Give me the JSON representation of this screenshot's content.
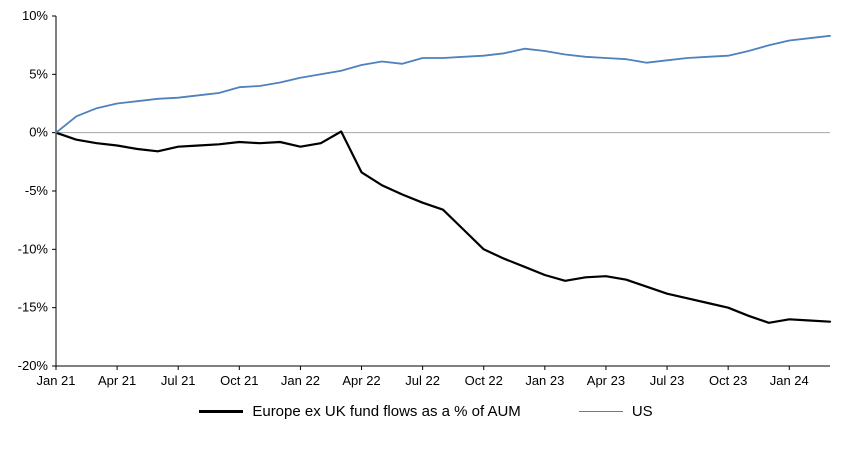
{
  "chart_data": {
    "type": "line",
    "title": "",
    "xlabel": "",
    "ylabel": "",
    "ylim": [
      -20,
      10
    ],
    "y_ticks": [
      {
        "value": 10,
        "label": "10%"
      },
      {
        "value": 5,
        "label": "5%"
      },
      {
        "value": 0,
        "label": "0%"
      },
      {
        "value": -5,
        "label": "-5%"
      },
      {
        "value": -10,
        "label": "-10%"
      },
      {
        "value": -15,
        "label": "-15%"
      },
      {
        "value": -20,
        "label": "-20%"
      }
    ],
    "x_unit": "month",
    "x_count": 39,
    "x_ticks": [
      {
        "index": 0,
        "label": "Jan 21"
      },
      {
        "index": 3,
        "label": "Apr 21"
      },
      {
        "index": 6,
        "label": "Jul 21"
      },
      {
        "index": 9,
        "label": "Oct 21"
      },
      {
        "index": 12,
        "label": "Jan 22"
      },
      {
        "index": 15,
        "label": "Apr 22"
      },
      {
        "index": 18,
        "label": "Jul 22"
      },
      {
        "index": 21,
        "label": "Oct 22"
      },
      {
        "index": 24,
        "label": "Jan 23"
      },
      {
        "index": 27,
        "label": "Apr 23"
      },
      {
        "index": 30,
        "label": "Jul 23"
      },
      {
        "index": 33,
        "label": "Oct 23"
      },
      {
        "index": 36,
        "label": "Jan 24"
      }
    ],
    "grid": false,
    "zero_line_color": "#a6a6a6",
    "axis_color": "#000000",
    "legend_position": "bottom",
    "series": [
      {
        "name": "Europe ex UK fund flows as a % of AUM",
        "color": "#000000",
        "width": 2.2,
        "values": [
          0.0,
          -0.6,
          -0.9,
          -1.1,
          -1.4,
          -1.6,
          -1.2,
          -1.1,
          -1.0,
          -0.8,
          -0.9,
          -0.8,
          -1.2,
          -0.9,
          0.1,
          -3.4,
          -4.5,
          -5.3,
          -6.0,
          -6.6,
          -8.3,
          -10.0,
          -10.8,
          -11.5,
          -12.2,
          -12.7,
          -12.4,
          -12.3,
          -12.6,
          -13.2,
          -13.8,
          -14.2,
          -14.6,
          -15.0,
          -15.7,
          -16.3,
          -16.0,
          -16.1,
          -16.2
        ]
      },
      {
        "name": "US",
        "color": "#4f81bd",
        "width": 1.8,
        "values": [
          0.0,
          1.4,
          2.1,
          2.5,
          2.7,
          2.9,
          3.0,
          3.2,
          3.4,
          3.9,
          4.0,
          4.3,
          4.7,
          5.0,
          5.3,
          5.8,
          6.1,
          5.9,
          6.4,
          6.4,
          6.5,
          6.6,
          6.8,
          7.2,
          7.0,
          6.7,
          6.5,
          6.4,
          6.3,
          6.0,
          6.2,
          6.4,
          6.5,
          6.6,
          7.0,
          7.5,
          7.9,
          8.1,
          8.3
        ]
      }
    ]
  }
}
